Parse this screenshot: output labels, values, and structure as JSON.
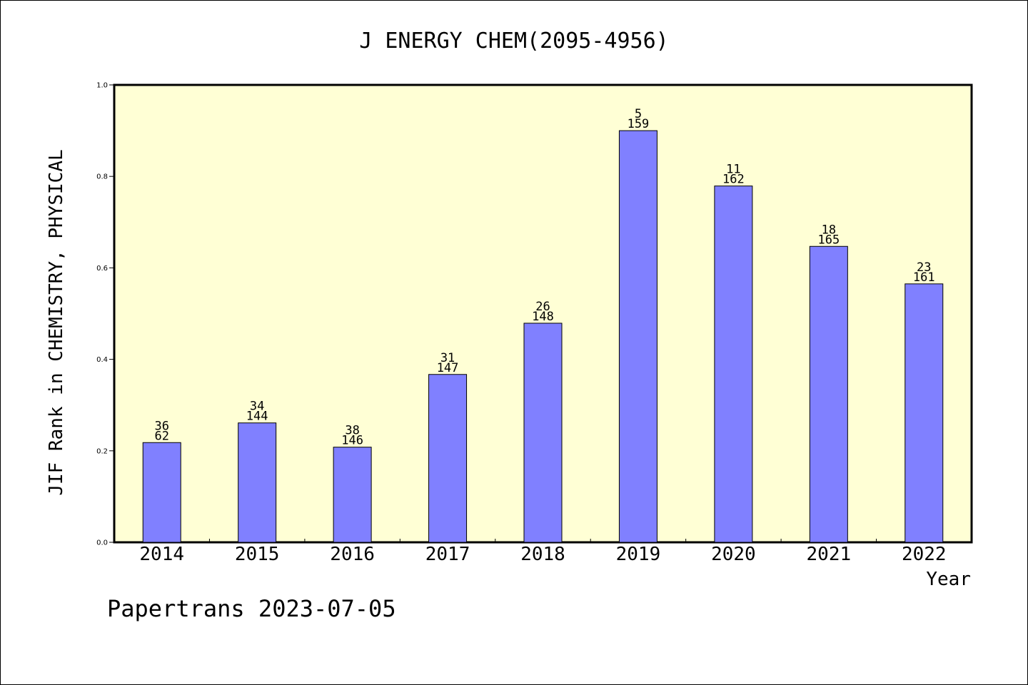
{
  "chart_data": {
    "type": "bar",
    "title": "J ENERGY CHEM(2095-4956)",
    "xlabel": "Year",
    "ylabel": "JIF Rank in CHEMISTRY, PHYSICAL",
    "ylim": [
      0,
      1.0
    ],
    "yticks": [
      0.0,
      0.2,
      0.4,
      0.6,
      0.8,
      1.0
    ],
    "ytick_labels": [
      "0.0",
      "0.2",
      "0.4",
      "0.6",
      "0.8",
      "1.0"
    ],
    "grid": false,
    "categories": [
      "2014",
      "2015",
      "2016",
      "2017",
      "2018",
      "2019",
      "2020",
      "2021",
      "2022"
    ],
    "values": [
      0.218,
      0.261,
      0.208,
      0.367,
      0.479,
      0.9,
      0.779,
      0.647,
      0.565
    ],
    "label_top": [
      "36",
      "34",
      "38",
      "31",
      "26",
      "5",
      "11",
      "18",
      "23"
    ],
    "label_bottom": [
      "62",
      "144",
      "146",
      "147",
      "148",
      "159",
      "162",
      "165",
      "161"
    ],
    "colors": {
      "plot_background": "#ffffd5",
      "bar_fill": "#8080ff",
      "bar_stroke": "#000000"
    }
  },
  "footer": {
    "text": "Papertrans 2023-07-05"
  }
}
